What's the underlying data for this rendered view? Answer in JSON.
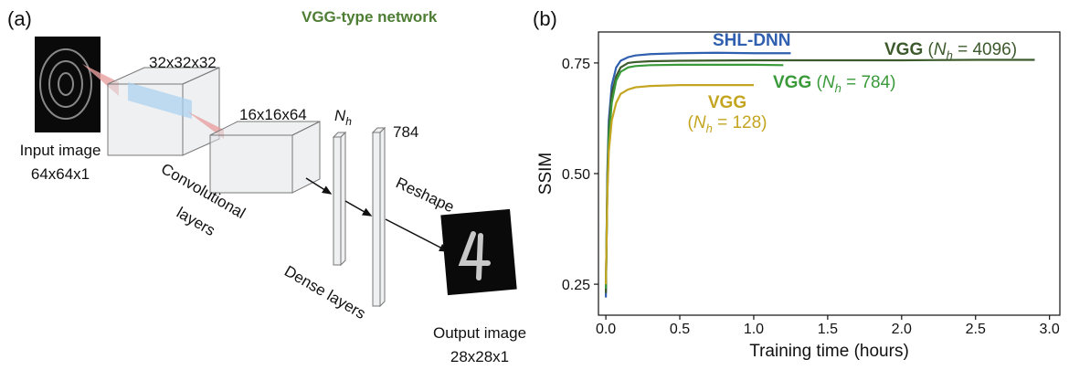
{
  "panel_a": {
    "label": "(a)",
    "title": "VGG-type network",
    "conv1": "32x32x32",
    "conv2": "16x16x64",
    "dense1": {
      "var": "N",
      "sub": "h"
    },
    "dense2": "784",
    "input": [
      "Input image",
      "64x64x1"
    ],
    "conv_label": [
      "Convolutional",
      "layers"
    ],
    "reshape": "Reshape",
    "dense_label": "Dense layers",
    "output": [
      "Output image",
      "28x28x1"
    ]
  },
  "chart_data": {
    "type": "line",
    "panel_label": "(b)",
    "x_label": "Training time (hours)",
    "y_label": "SSIM",
    "xlim": [
      -0.05,
      3.07
    ],
    "ylim": [
      0.18,
      0.82
    ],
    "xticks": [
      {
        "value": 0,
        "label": "0.0"
      },
      {
        "value": 0.5,
        "label": "0.5"
      },
      {
        "value": 1,
        "label": "1.0"
      },
      {
        "value": 1.5,
        "label": "1.5"
      },
      {
        "value": 2,
        "label": "2.0"
      },
      {
        "value": 2.5,
        "label": "2.5"
      },
      {
        "value": 3,
        "label": "3.0"
      }
    ],
    "yticks": [
      0.25,
      {
        "value": 0.5,
        "label": "0.50"
      },
      0.75
    ],
    "series": [
      {
        "name": "SHL-DNN",
        "color": "#2f5fae",
        "x": [
          0,
          0.01,
          0.02,
          0.04,
          0.07,
          0.1,
          0.15,
          0.2,
          0.3,
          0.5,
          0.75,
          1.0,
          1.25
        ],
        "values": [
          0.22,
          0.5,
          0.62,
          0.7,
          0.74,
          0.755,
          0.763,
          0.767,
          0.77,
          0.772,
          0.773,
          0.772,
          0.772
        ]
      },
      {
        "name": "VGG",
        "annotation": [
          "(",
          "N",
          "h",
          " = 4096)"
        ],
        "color": "#3d5a2c",
        "x": [
          0,
          0.01,
          0.02,
          0.04,
          0.07,
          0.1,
          0.15,
          0.2,
          0.3,
          0.5,
          1.0,
          1.5,
          2.0,
          2.5,
          2.9
        ],
        "values": [
          0.23,
          0.48,
          0.6,
          0.68,
          0.72,
          0.74,
          0.75,
          0.752,
          0.754,
          0.755,
          0.756,
          0.756,
          0.756,
          0.757,
          0.757
        ]
      },
      {
        "name": "VGG",
        "annotation": [
          "(",
          "N",
          "h",
          " = 784)"
        ],
        "color": "#3a9a3a",
        "x": [
          0,
          0.01,
          0.02,
          0.04,
          0.07,
          0.1,
          0.15,
          0.2,
          0.3,
          0.5,
          0.8,
          1.0,
          1.2
        ],
        "values": [
          0.24,
          0.46,
          0.58,
          0.66,
          0.71,
          0.73,
          0.74,
          0.743,
          0.745,
          0.746,
          0.746,
          0.746,
          0.745
        ]
      },
      {
        "name": "VGG",
        "annotation": [
          "(",
          "N",
          "h",
          " = 128)"
        ],
        "color": "#c4a520",
        "x": [
          0,
          0.01,
          0.02,
          0.04,
          0.07,
          0.1,
          0.15,
          0.2,
          0.3,
          0.5,
          0.75,
          1.0
        ],
        "values": [
          0.25,
          0.45,
          0.55,
          0.62,
          0.66,
          0.68,
          0.69,
          0.695,
          0.698,
          0.7,
          0.7,
          0.7
        ]
      }
    ]
  }
}
